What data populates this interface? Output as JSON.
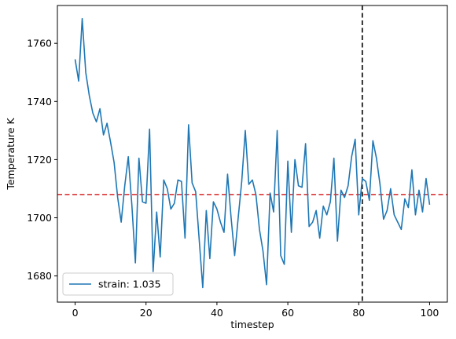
{
  "chart_data": {
    "type": "line",
    "title": "",
    "xlabel": "timestep",
    "ylabel": "Temperature K",
    "xlim": [
      -5,
      105
    ],
    "ylim": [
      1671,
      1773
    ],
    "xticks": [
      0,
      20,
      40,
      60,
      80,
      100
    ],
    "yticks": [
      1680,
      1700,
      1720,
      1740,
      1760
    ],
    "grid": false,
    "legend_position": "lower-left",
    "series": [
      {
        "name": "strain: 1.035",
        "color": "#1f77b4",
        "x": [
          0,
          1,
          2,
          3,
          4,
          5,
          6,
          7,
          8,
          9,
          10,
          11,
          12,
          13,
          14,
          15,
          16,
          17,
          18,
          19,
          20,
          21,
          22,
          23,
          24,
          25,
          26,
          27,
          28,
          29,
          30,
          31,
          32,
          33,
          34,
          35,
          36,
          37,
          38,
          39,
          40,
          41,
          42,
          43,
          44,
          45,
          46,
          47,
          48,
          49,
          50,
          51,
          52,
          53,
          54,
          55,
          56,
          57,
          58,
          59,
          60,
          61,
          62,
          63,
          64,
          65,
          66,
          67,
          68,
          69,
          70,
          71,
          72,
          73,
          74,
          75,
          76,
          77,
          78,
          79,
          80,
          81,
          82,
          83,
          84,
          85,
          86,
          87,
          88,
          89,
          90,
          91,
          92,
          93,
          94,
          95,
          96,
          97,
          98,
          99,
          100
        ],
        "y": [
          1754.5,
          1747,
          1768.5,
          1750,
          1742,
          1736,
          1733,
          1737.5,
          1728.5,
          1732.5,
          1726,
          1719,
          1707,
          1698.5,
          1711,
          1721,
          1704.5,
          1684.5,
          1720.5,
          1705.5,
          1705,
          1730.5,
          1681.5,
          1702,
          1686.5,
          1713,
          1710,
          1703,
          1705,
          1713,
          1712.5,
          1693,
          1732,
          1712,
          1709,
          1692.5,
          1676,
          1702.5,
          1686,
          1705.5,
          1703,
          1698.5,
          1695,
          1715,
          1700,
          1687,
          1700,
          1712.5,
          1730,
          1711.5,
          1713,
          1708,
          1696,
          1688.5,
          1677,
          1708.5,
          1702,
          1730,
          1687,
          1684,
          1719.5,
          1695,
          1720,
          1711,
          1710.5,
          1725.5,
          1697,
          1698.5,
          1702.5,
          1693,
          1704,
          1701,
          1705.5,
          1720.5,
          1692,
          1709.5,
          1707,
          1711,
          1721,
          1727,
          1701,
          1713.5,
          1712.5,
          1706,
          1726.5,
          1720.5,
          1711.5,
          1699.5,
          1702.5,
          1710,
          1701,
          1698.5,
          1696,
          1706.5,
          1703.5,
          1716.5,
          1701,
          1709.5,
          1702,
          1713.5,
          1704.5
        ]
      }
    ],
    "reference_lines": [
      {
        "orientation": "horizontal",
        "value": 1708,
        "color": "#d62728",
        "style": "dashed"
      },
      {
        "orientation": "vertical",
        "value": 81,
        "color": "#000000",
        "style": "dashed"
      }
    ]
  }
}
